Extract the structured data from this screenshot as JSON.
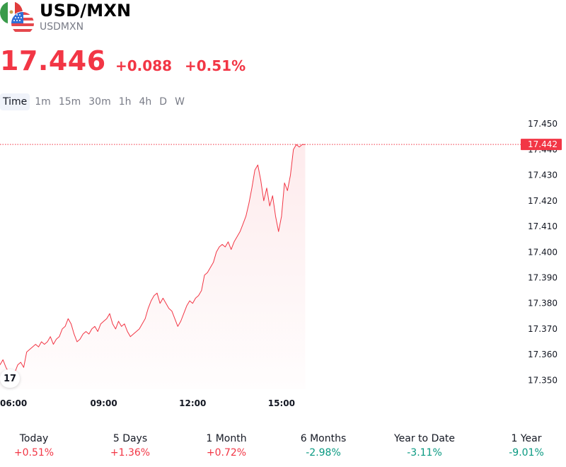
{
  "symbol": {
    "title": "USD/MXN",
    "ticker": "USDMXN",
    "flags": [
      "mexico-flag-icon",
      "usa-flag-icon"
    ]
  },
  "quote": {
    "price": "17.446",
    "change": "+0.088",
    "change_pct": "+0.51%",
    "color": "#f23645"
  },
  "intervals": [
    {
      "label": "Time",
      "active": true
    },
    {
      "label": "1m",
      "active": false
    },
    {
      "label": "15m",
      "active": false
    },
    {
      "label": "30m",
      "active": false
    },
    {
      "label": "1h",
      "active": false
    },
    {
      "label": "4h",
      "active": false
    },
    {
      "label": "D",
      "active": false
    },
    {
      "label": "W",
      "active": false
    }
  ],
  "chart_data": {
    "type": "area",
    "line_color": "#f23645",
    "y_ticks": [
      "17.450",
      "17.440",
      "17.430",
      "17.420",
      "17.410",
      "17.400",
      "17.390",
      "17.380",
      "17.370",
      "17.360",
      "17.350"
    ],
    "y_range": [
      17.3465,
      17.4542
    ],
    "x_ticks": [
      {
        "label": "06:00",
        "time": 6.0
      },
      {
        "label": "09:00",
        "time": 9.0
      },
      {
        "label": "12:00",
        "time": 12.0
      },
      {
        "label": "15:00",
        "time": 15.0
      }
    ],
    "x_range": [
      5.5,
      24.6
    ],
    "last_price_label": "17.442",
    "last_price_value": 17.442,
    "x": [
      5.5,
      5.6,
      5.7,
      5.8,
      5.9,
      6.0,
      6.1,
      6.2,
      6.3,
      6.4,
      6.5,
      6.6,
      6.7,
      6.8,
      6.9,
      7.0,
      7.1,
      7.2,
      7.3,
      7.4,
      7.5,
      7.6,
      7.7,
      7.8,
      7.9,
      8.0,
      8.1,
      8.2,
      8.3,
      8.4,
      8.5,
      8.6,
      8.7,
      8.8,
      8.9,
      9.0,
      9.1,
      9.2,
      9.3,
      9.4,
      9.5,
      9.6,
      9.7,
      9.8,
      9.9,
      10.0,
      10.1,
      10.2,
      10.3,
      10.4,
      10.5,
      10.6,
      10.7,
      10.8,
      10.9,
      11.0,
      11.1,
      11.2,
      11.3,
      11.4,
      11.5,
      11.6,
      11.7,
      11.8,
      11.9,
      12.0,
      12.1,
      12.2,
      12.3,
      12.4,
      12.5,
      12.6,
      12.7,
      12.8,
      12.9,
      13.0,
      13.1,
      13.2,
      13.3,
      13.4,
      13.5,
      13.6,
      13.7,
      13.8,
      13.9,
      14.0,
      14.1,
      14.2,
      14.3,
      14.4,
      14.5,
      14.6,
      14.7,
      14.8,
      14.9,
      15.0,
      15.1,
      15.2,
      15.3,
      15.4,
      15.5,
      15.6,
      15.7,
      15.8
    ],
    "values": [
      17.356,
      17.358,
      17.355,
      17.353,
      17.354,
      17.353,
      17.356,
      17.357,
      17.355,
      17.361,
      17.362,
      17.363,
      17.364,
      17.363,
      17.365,
      17.364,
      17.365,
      17.367,
      17.364,
      17.366,
      17.367,
      17.37,
      17.371,
      17.374,
      17.372,
      17.368,
      17.365,
      17.366,
      17.368,
      17.369,
      17.368,
      17.37,
      17.371,
      17.369,
      17.372,
      17.373,
      17.374,
      17.376,
      17.372,
      17.37,
      17.373,
      17.371,
      17.372,
      17.369,
      17.367,
      17.368,
      17.369,
      17.37,
      17.372,
      17.374,
      17.378,
      17.381,
      17.383,
      17.384,
      17.38,
      17.382,
      17.38,
      17.378,
      17.377,
      17.374,
      17.371,
      17.373,
      17.376,
      17.379,
      17.381,
      17.38,
      17.382,
      17.383,
      17.385,
      17.391,
      17.392,
      17.394,
      17.396,
      17.4,
      17.402,
      17.403,
      17.402,
      17.404,
      17.401,
      17.404,
      17.406,
      17.408,
      17.411,
      17.414,
      17.419,
      17.425,
      17.432,
      17.434,
      17.428,
      17.42,
      17.425,
      17.418,
      17.422,
      17.414,
      17.408,
      17.414,
      17.427,
      17.424,
      17.43,
      17.44,
      17.442,
      17.441,
      17.442,
      17.442
    ]
  },
  "performance": [
    {
      "label": "Today",
      "value": "+0.51%",
      "direction": "pos"
    },
    {
      "label": "5 Days",
      "value": "+1.36%",
      "direction": "pos"
    },
    {
      "label": "1 Month",
      "value": "+0.72%",
      "direction": "pos"
    },
    {
      "label": "6 Months",
      "value": "-2.98%",
      "direction": "neg"
    },
    {
      "label": "Year to Date",
      "value": "-3.11%",
      "direction": "neg"
    },
    {
      "label": "1 Year",
      "value": "-9.01%",
      "direction": "neg"
    }
  ],
  "branding": {
    "logo_icon": "tradingview-logo-icon",
    "logo_text": "17"
  }
}
